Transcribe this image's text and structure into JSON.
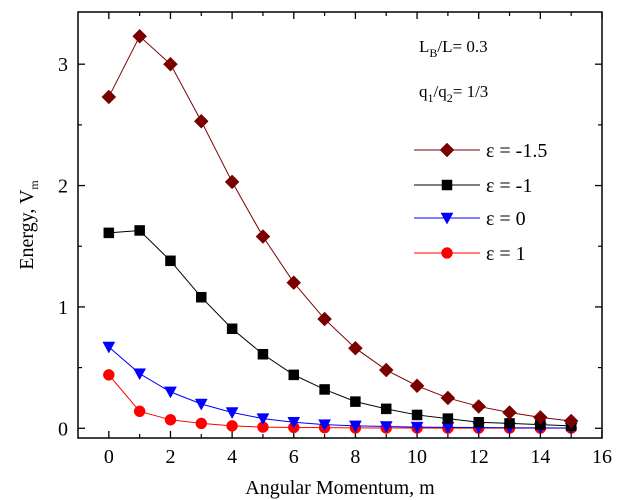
{
  "chart_data": {
    "type": "line",
    "xlabel": "Angular Momentum, m",
    "ylabel": "Energy, V",
    "ylabel_sub": "m",
    "xlim": [
      -1,
      16
    ],
    "ylim": [
      -0.08,
      3.43
    ],
    "xticks": [
      0,
      2,
      4,
      6,
      8,
      10,
      12,
      14,
      16
    ],
    "yticks": [
      0,
      1,
      2,
      3
    ],
    "grid": false,
    "legend_position": "right",
    "annotations": [
      {
        "parts": [
          {
            "t": "L",
            "sub": false
          },
          {
            "t": "B",
            "sub": true
          },
          {
            "t": "/L= 0.3",
            "sub": false
          }
        ]
      },
      {
        "parts": [
          {
            "t": "q",
            "sub": false
          },
          {
            "t": "1",
            "sub": true
          },
          {
            "t": "/q",
            "sub": false
          },
          {
            "t": "2",
            "sub": true
          },
          {
            "t": "= 1/3",
            "sub": false
          }
        ]
      }
    ],
    "x": [
      0,
      1,
      2,
      3,
      4,
      5,
      6,
      7,
      8,
      9,
      10,
      11,
      12,
      13,
      14,
      15
    ],
    "series": [
      {
        "name": "ε =  -1.5",
        "color": "#7a0000",
        "marker": "diamond",
        "values": [
          2.73,
          3.23,
          3.0,
          2.53,
          2.03,
          1.58,
          1.2,
          0.9,
          0.66,
          0.48,
          0.35,
          0.25,
          0.18,
          0.13,
          0.09,
          0.06
        ]
      },
      {
        "name": "ε =  -1",
        "color": "#000000",
        "marker": "square",
        "values": [
          1.61,
          1.63,
          1.38,
          1.08,
          0.82,
          0.61,
          0.44,
          0.32,
          0.22,
          0.16,
          0.11,
          0.08,
          0.05,
          0.04,
          0.03,
          0.02
        ]
      },
      {
        "name": "ε =  0",
        "color": "#0000ff",
        "marker": "triangle-down",
        "values": [
          0.67,
          0.45,
          0.3,
          0.2,
          0.13,
          0.08,
          0.05,
          0.03,
          0.02,
          0.015,
          0.01,
          0.008,
          0.006,
          0.004,
          0.003,
          0.002
        ]
      },
      {
        "name": "ε = 1",
        "color": "#ff0000",
        "marker": "circle",
        "values": [
          0.44,
          0.14,
          0.07,
          0.04,
          0.02,
          0.01,
          0.007,
          0.005,
          0.003,
          0.002,
          0.002,
          0.001,
          0.001,
          0.001,
          0.001,
          0.001
        ]
      }
    ]
  }
}
